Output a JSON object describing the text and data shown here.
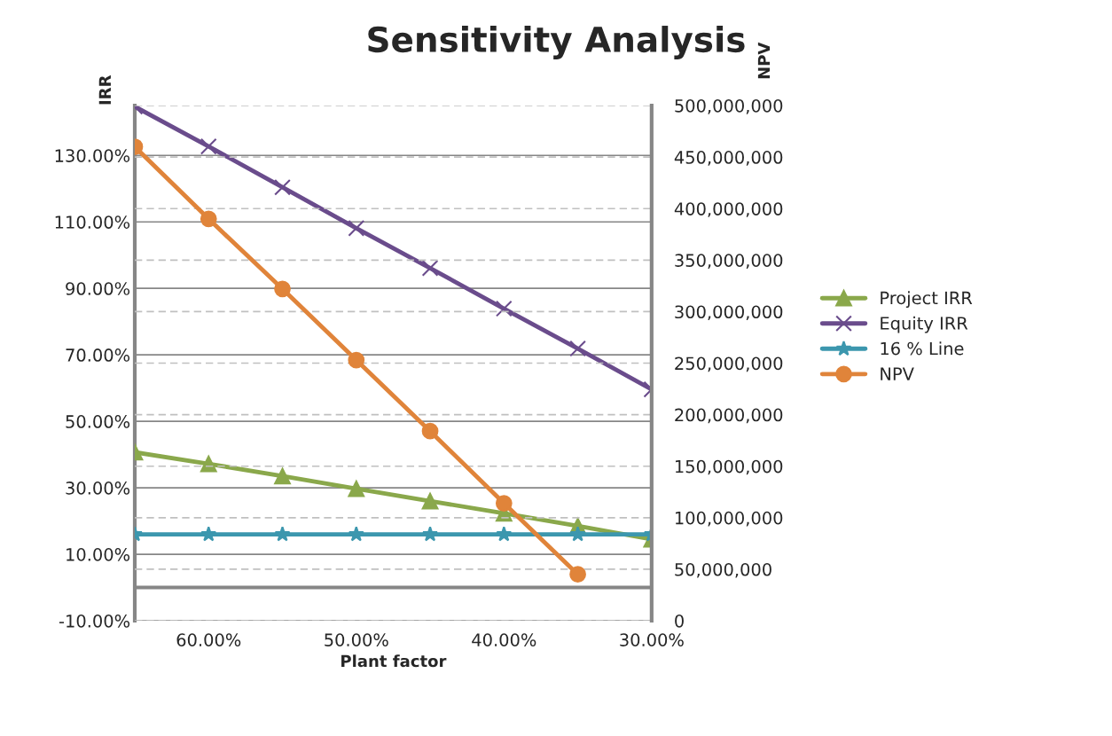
{
  "chart_data": {
    "type": "line",
    "title": "Sensitivity Analysis",
    "xlabel": "Plant factor",
    "ylabel": "IRR",
    "y2label": "NPV",
    "x": [
      65,
      60,
      55,
      50,
      45,
      40,
      35,
      30
    ],
    "xlim": [
      65,
      30
    ],
    "xticks": [
      {
        "value": 60,
        "label": "60.00%"
      },
      {
        "value": 50,
        "label": "50.00%"
      },
      {
        "value": 40,
        "label": "40.00%"
      },
      {
        "value": 30,
        "label": "30.00%"
      }
    ],
    "ylim": [
      -10,
      145
    ],
    "yticks": [
      {
        "value": -10,
        "label": "-10.00%"
      },
      {
        "value": 10,
        "label": "10.00%"
      },
      {
        "value": 30,
        "label": "30.00%"
      },
      {
        "value": 50,
        "label": "50.00%"
      },
      {
        "value": 70,
        "label": "70.00%"
      },
      {
        "value": 90,
        "label": "90.00%"
      },
      {
        "value": 110,
        "label": "110.00%"
      },
      {
        "value": 130,
        "label": "130.00%"
      }
    ],
    "y2lim": [
      0,
      500000000
    ],
    "y2ticks": [
      0,
      {
        "value": 50000000,
        "label": "50,000,000"
      },
      {
        "value": 100000000,
        "label": "100,000,000"
      },
      {
        "value": 150000000,
        "label": "150,000,000"
      },
      {
        "value": 200000000,
        "label": "200,000,000"
      },
      {
        "value": 250000000,
        "label": "250,000,000"
      },
      {
        "value": 300000000,
        "label": "300,000,000"
      },
      {
        "value": 350000000,
        "label": "350,000,000"
      },
      {
        "value": 400000000,
        "label": "400,000,000"
      },
      {
        "value": 450000000,
        "label": "450,000,000"
      },
      {
        "value": 500000000,
        "label": "500,000,000"
      }
    ],
    "series": [
      {
        "name": "Project IRR",
        "color": "#8aa84b",
        "marker": "triangle",
        "values": [
          40.7,
          37.2,
          33.5,
          29.7,
          26.0,
          22.3,
          18.5,
          14.5
        ]
      },
      {
        "name": "Equity IRR",
        "color": "#6a4c8c",
        "marker": "cross",
        "values": [
          144.7,
          132.7,
          120.4,
          108.1,
          96.1,
          83.9,
          71.9,
          59.6
        ]
      },
      {
        "name": "16 % Line",
        "color": "#3c97ae",
        "marker": "star",
        "values": [
          16,
          16,
          16,
          16,
          16,
          16,
          16,
          16
        ]
      },
      {
        "name": "NPV",
        "color": "#e0843a",
        "marker": "circle",
        "axis": "y2",
        "values": [
          460000000,
          390000000,
          322000000,
          253000000,
          184000000,
          114000000,
          45000000,
          null
        ]
      }
    ],
    "ref_lines": [
      {
        "axis": "y",
        "value": 0,
        "color": "#868686"
      }
    ],
    "grid": true,
    "legend": "right"
  }
}
